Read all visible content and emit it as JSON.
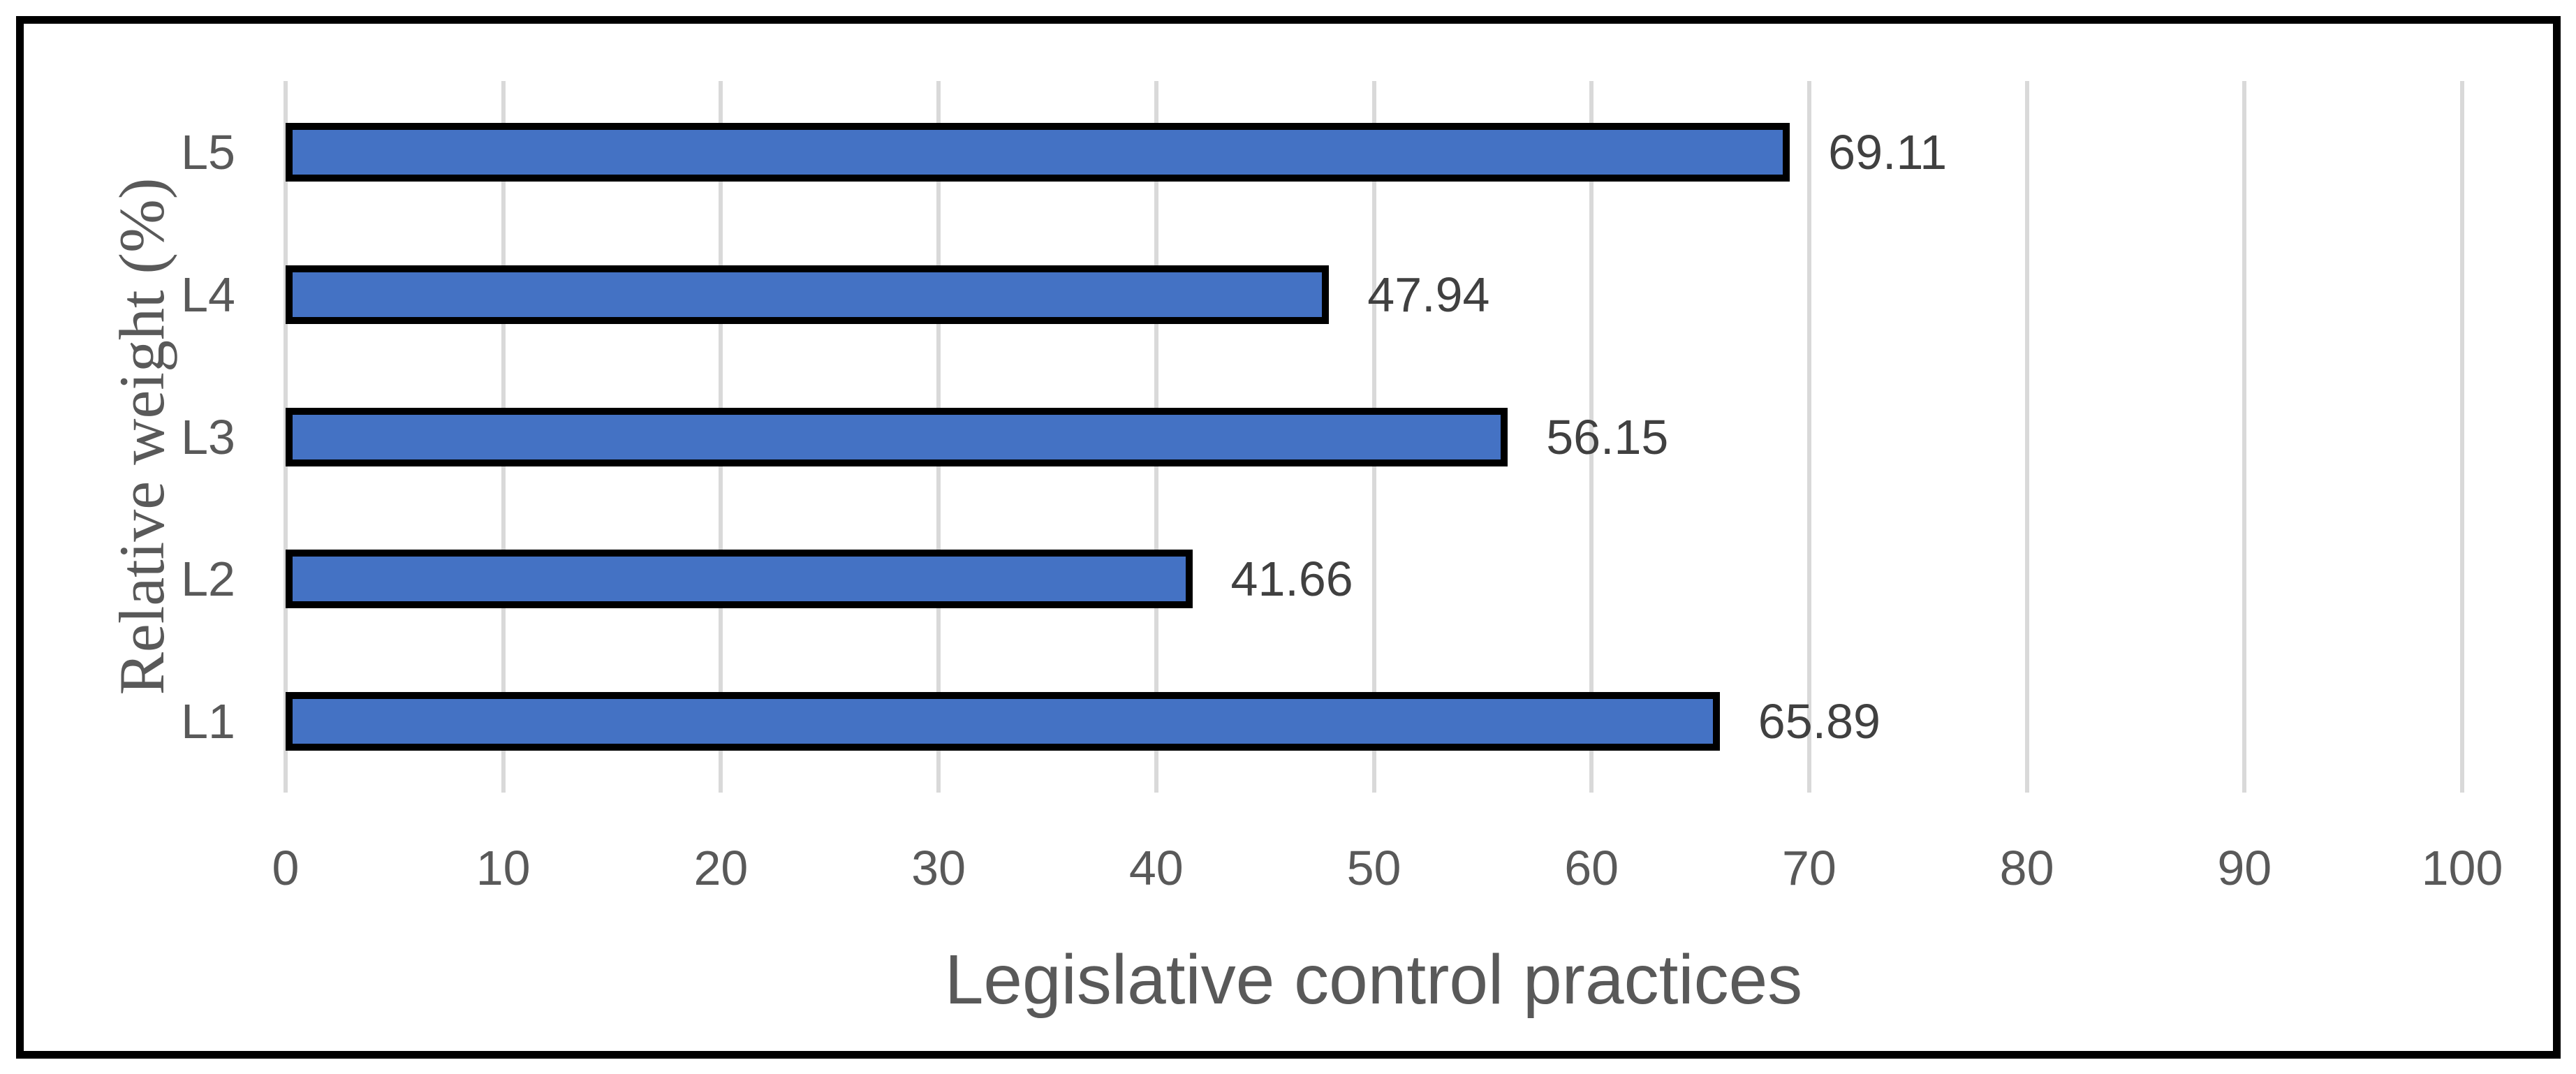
{
  "chart_data": {
    "type": "bar",
    "orientation": "horizontal",
    "categories": [
      "L5",
      "L4",
      "L3",
      "L2",
      "L1"
    ],
    "values": [
      69.11,
      47.94,
      56.15,
      41.66,
      65.89
    ],
    "data_labels": [
      "69.11",
      "47.94",
      "56.15",
      "41.66",
      "65.89"
    ],
    "series": [
      {
        "name": "Relative weight",
        "values": [
          69.11,
          47.94,
          56.15,
          41.66,
          65.89
        ]
      }
    ],
    "title": "",
    "xlabel": "Legislative control practices",
    "ylabel": "Relative weight (%)",
    "xlim": [
      0,
      100
    ],
    "xticks": [
      "0",
      "10",
      "20",
      "30",
      "40",
      "50",
      "60",
      "70",
      "80",
      "90",
      "100"
    ],
    "grid": "vertical-major-gridlines",
    "legend": "none",
    "colors": {
      "bar_fill": "#4472C4",
      "bar_border": "#000000",
      "gridline": "#D9D9D9",
      "axis_text": "#595959",
      "data_label_text": "#404040",
      "frame_border": "#000000",
      "background": "#ffffff"
    }
  }
}
